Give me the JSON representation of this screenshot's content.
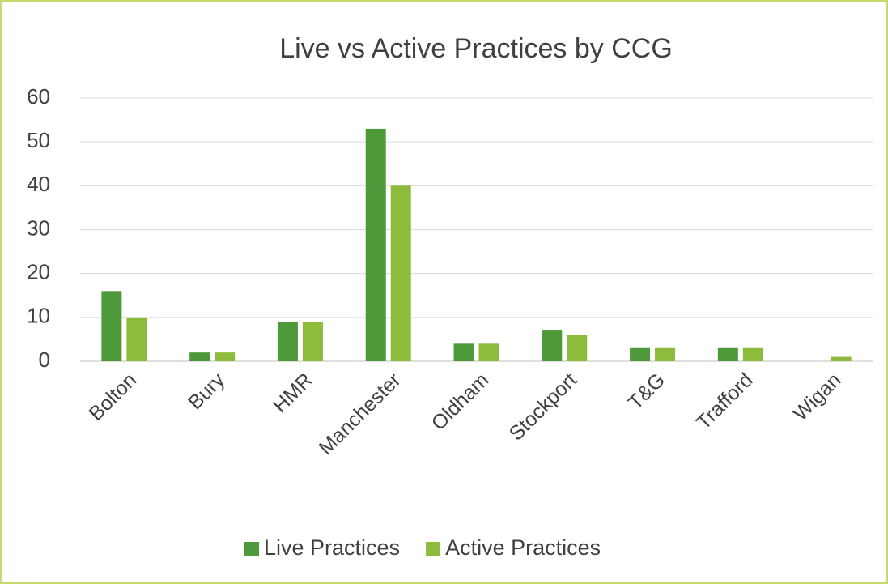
{
  "chart_data": {
    "type": "bar",
    "title": "Live vs Active Practices by CCG",
    "categories": [
      "Bolton",
      "Bury",
      "HMR",
      "Manchester",
      "Oldham",
      "Stockport",
      "T&G",
      "Trafford",
      "Wigan"
    ],
    "series": [
      {
        "name": "Live Practices",
        "color": "#4e9a3b",
        "values": [
          16,
          2,
          9,
          53,
          4,
          7,
          3,
          3,
          0
        ]
      },
      {
        "name": "Active Practices",
        "color": "#8dbb3c",
        "values": [
          10,
          2,
          9,
          40,
          4,
          6,
          3,
          3,
          1
        ]
      }
    ],
    "ylim": [
      0,
      60
    ],
    "yticks": [
      0,
      10,
      20,
      30,
      40,
      50,
      60
    ],
    "grid": true,
    "legend": "bottom"
  }
}
